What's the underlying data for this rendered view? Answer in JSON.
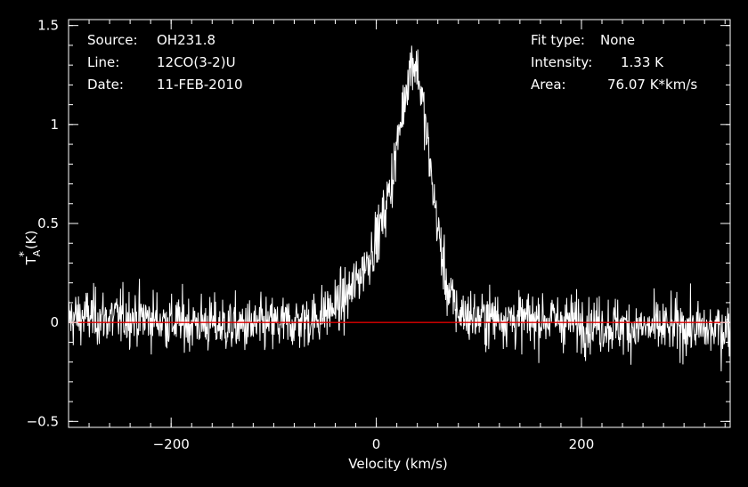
{
  "colors": {
    "background": "#000000",
    "foreground": "#ffffff",
    "baseline": "#e00000"
  },
  "info_left": [
    {
      "key": "Source:",
      "value": "OH231.8"
    },
    {
      "key": "Line:",
      "value": "12CO(3-2)U"
    },
    {
      "key": "Date:",
      "value": "11-FEB-2010"
    }
  ],
  "info_right": [
    {
      "key": "Fit type:",
      "value": "None"
    },
    {
      "key": "Intensity:",
      "value": "1.33 K"
    },
    {
      "key": "Area:",
      "value": "76.07 K*km/s"
    }
  ],
  "chart_data": {
    "type": "line",
    "xlabel": "Velocity (km/s)",
    "ylabel": "T_A^* (K)",
    "ylabel_main": "T",
    "ylabel_sub": "A",
    "ylabel_sup": "*",
    "ylabel_unit": "(K)",
    "xlim": [
      -300,
      345
    ],
    "ylim": [
      -0.53,
      1.53
    ],
    "xticks": [
      -200,
      0,
      200
    ],
    "xtick_labels": [
      "−200",
      "0",
      "200"
    ],
    "yticks": [
      -0.5,
      0,
      0.5,
      1,
      1.5
    ],
    "ytick_labels": [
      "−0.5",
      "0",
      "0.5",
      "1",
      "1.5"
    ],
    "baseline_y": 0,
    "grid": false,
    "series": [
      {
        "x": [
          -300,
          -280,
          -260,
          -240,
          -220,
          -200,
          -180,
          -160,
          -140,
          -120,
          -100,
          -80,
          -60,
          -40,
          -30,
          -20,
          -10,
          0,
          5,
          10,
          15,
          20,
          25,
          30,
          35,
          40,
          45,
          50,
          55,
          60,
          65,
          70,
          80,
          100,
          120,
          140,
          160,
          180,
          200,
          220,
          240,
          260,
          280,
          300,
          320,
          345
        ],
        "y": [
          0.02,
          0.03,
          0.02,
          0.03,
          0.02,
          0.0,
          0.0,
          -0.01,
          -0.02,
          -0.02,
          -0.01,
          0.0,
          0.02,
          0.08,
          0.12,
          0.2,
          0.3,
          0.42,
          0.5,
          0.6,
          0.72,
          0.88,
          1.05,
          1.22,
          1.33,
          1.28,
          1.12,
          0.9,
          0.68,
          0.48,
          0.3,
          0.15,
          0.05,
          0.02,
          0.03,
          0.01,
          0.02,
          0.01,
          0.0,
          -0.01,
          -0.02,
          -0.03,
          -0.03,
          -0.02,
          -0.04,
          -0.03
        ]
      }
    ]
  }
}
